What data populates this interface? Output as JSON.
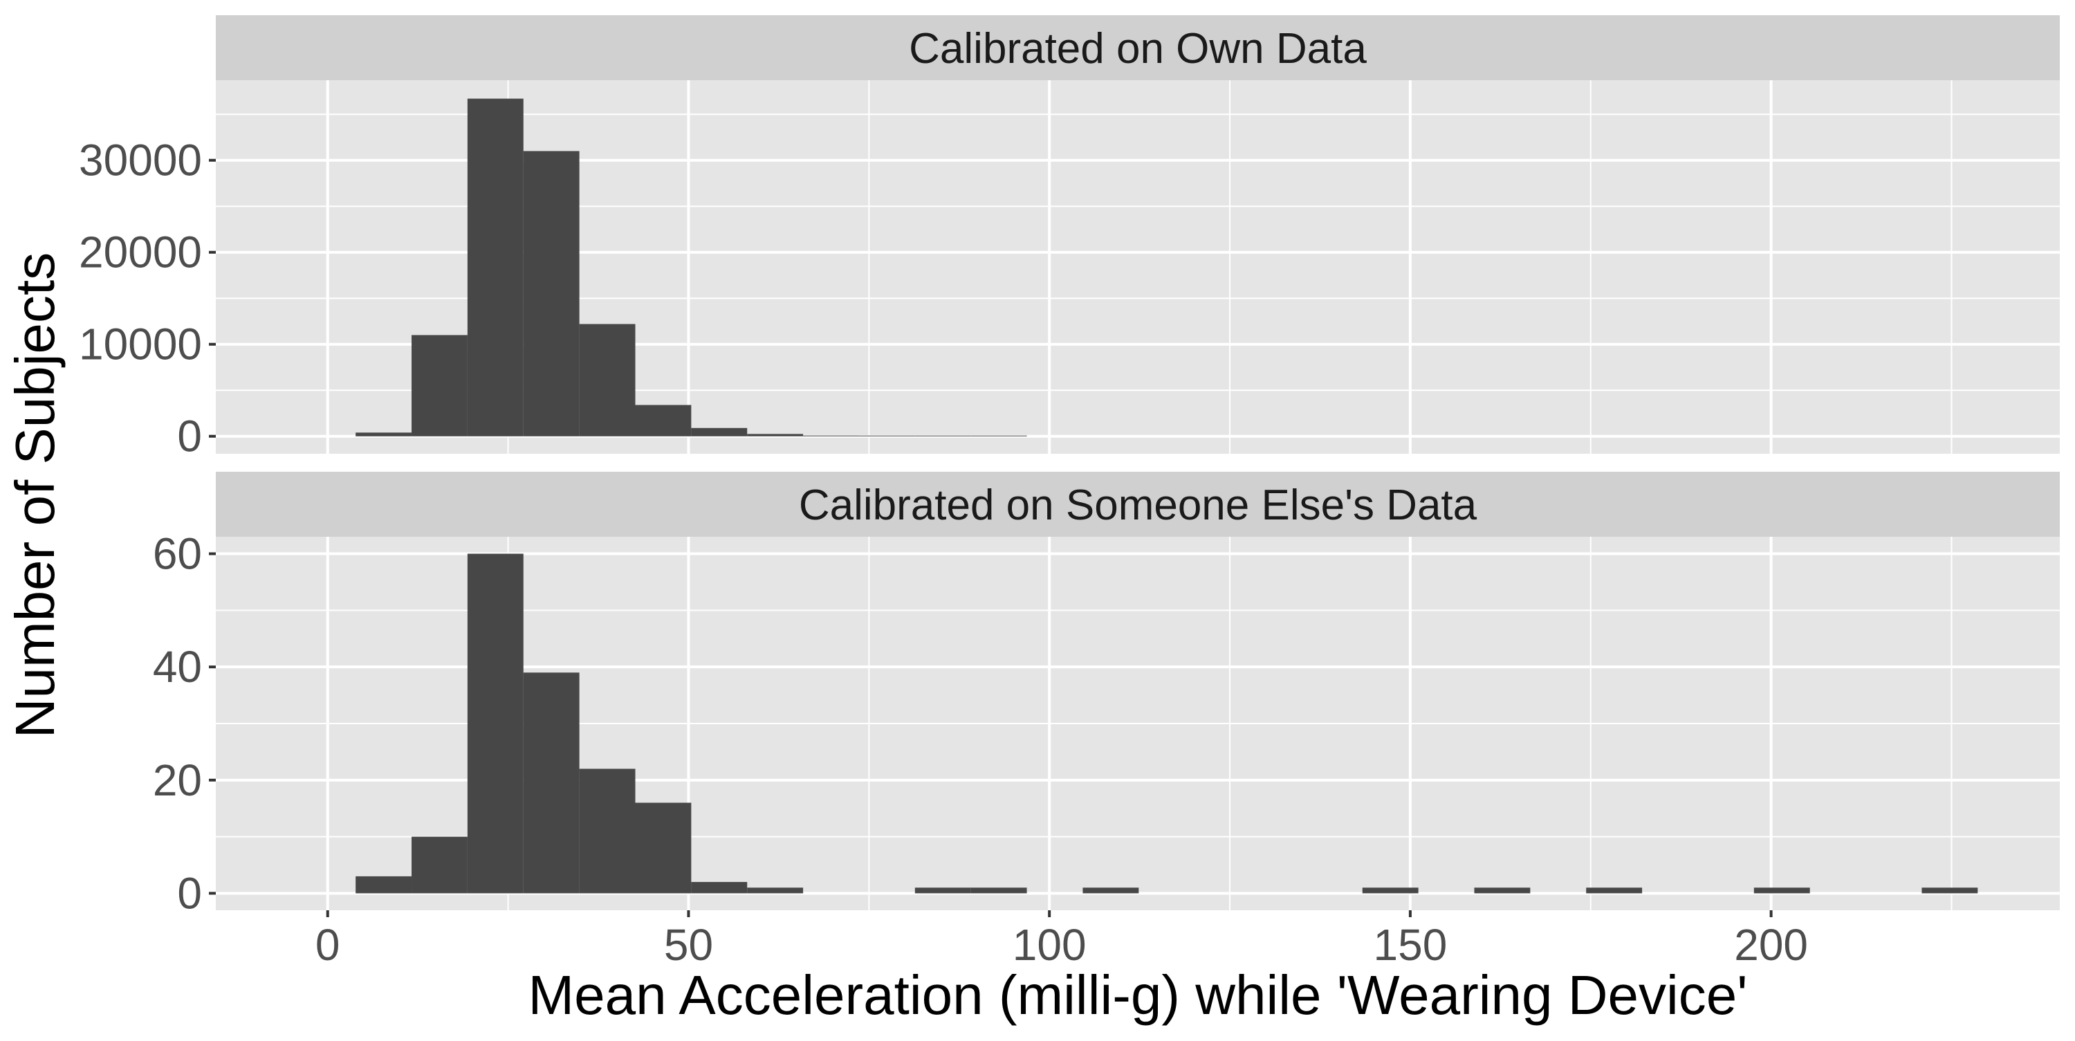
{
  "chart_data": {
    "type": "bar",
    "xlabel": "Mean Acceleration (milli-g) while 'Wearing Device'",
    "ylabel": "Number of Subjects",
    "xlim": [
      -15.5,
      240
    ],
    "x_ticks": [
      0,
      50,
      100,
      150,
      200
    ],
    "x_tick_labels": [
      "0",
      "50",
      "100",
      "150",
      "200"
    ],
    "grid": true,
    "bin_width": 7.75,
    "panels": [
      {
        "strip_label": "Calibrated on Own Data",
        "ylim": [
          -1900,
          38700
        ],
        "y_ticks": [
          0,
          10000,
          20000,
          30000
        ],
        "y_tick_labels": [
          "0",
          "10000",
          "20000",
          "30000"
        ],
        "bins": [
          {
            "x0": 3.875,
            "x1": 11.625,
            "value": 400
          },
          {
            "x0": 11.625,
            "x1": 19.375,
            "value": 11000
          },
          {
            "x0": 19.375,
            "x1": 27.125,
            "value": 36700
          },
          {
            "x0": 27.125,
            "x1": 34.875,
            "value": 31000
          },
          {
            "x0": 34.875,
            "x1": 42.625,
            "value": 12200
          },
          {
            "x0": 42.625,
            "x1": 50.375,
            "value": 3400
          },
          {
            "x0": 50.375,
            "x1": 58.125,
            "value": 900
          },
          {
            "x0": 58.125,
            "x1": 65.875,
            "value": 250
          },
          {
            "x0": 65.875,
            "x1": 73.625,
            "value": 80
          },
          {
            "x0": 73.625,
            "x1": 81.375,
            "value": 40
          },
          {
            "x0": 81.375,
            "x1": 89.125,
            "value": 15
          },
          {
            "x0": 89.125,
            "x1": 96.875,
            "value": 5
          }
        ]
      },
      {
        "strip_label": "Calibrated on Someone Else's Data",
        "ylim": [
          -3,
          63
        ],
        "y_ticks": [
          0,
          20,
          40,
          60
        ],
        "y_tick_labels": [
          "0",
          "20",
          "40",
          "60"
        ],
        "bins": [
          {
            "x0": 3.875,
            "x1": 11.625,
            "value": 3
          },
          {
            "x0": 11.625,
            "x1": 19.375,
            "value": 10
          },
          {
            "x0": 19.375,
            "x1": 27.125,
            "value": 60
          },
          {
            "x0": 27.125,
            "x1": 34.875,
            "value": 39
          },
          {
            "x0": 34.875,
            "x1": 42.625,
            "value": 22
          },
          {
            "x0": 42.625,
            "x1": 50.375,
            "value": 16
          },
          {
            "x0": 50.375,
            "x1": 58.125,
            "value": 2
          },
          {
            "x0": 58.125,
            "x1": 65.875,
            "value": 1
          },
          {
            "x0": 81.375,
            "x1": 89.125,
            "value": 1
          },
          {
            "x0": 89.125,
            "x1": 96.875,
            "value": 1
          },
          {
            "x0": 104.625,
            "x1": 112.375,
            "value": 1
          },
          {
            "x0": 143.375,
            "x1": 151.125,
            "value": 1
          },
          {
            "x0": 158.875,
            "x1": 166.625,
            "value": 1
          },
          {
            "x0": 174.375,
            "x1": 182.125,
            "value": 1
          },
          {
            "x0": 197.625,
            "x1": 205.375,
            "value": 1
          },
          {
            "x0": 220.875,
            "x1": 228.625,
            "value": 1
          }
        ]
      }
    ],
    "colors": {
      "bar": "#474747",
      "panel_background": "#e5e5e5",
      "strip_background": "#d0d0d0",
      "gridline": "#ffffff",
      "tick_label": "#4d4d4d",
      "text": "#1a1a1a"
    }
  }
}
